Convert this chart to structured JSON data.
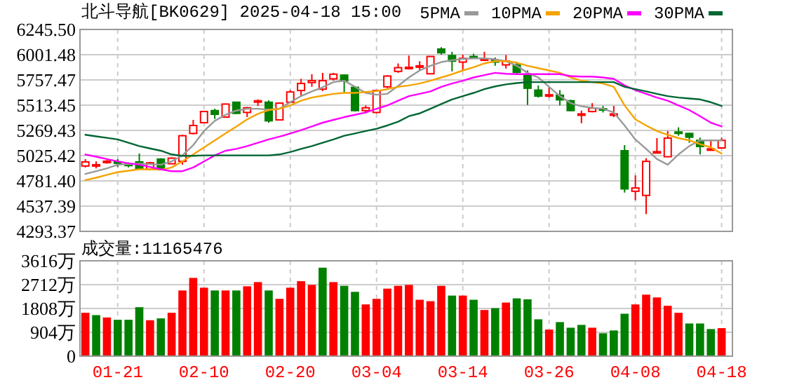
{
  "chart_data": [
    {
      "type": "candlestick",
      "title": "北斗导航[BK0629] 2025-04-18 15:00",
      "categories": [
        null,
        null,
        null,
        null,
        null,
        null,
        null,
        null,
        null,
        null,
        null,
        null,
        null,
        null,
        null,
        null,
        null,
        null,
        null,
        null,
        null,
        null,
        null,
        null,
        null,
        null,
        null,
        null,
        null,
        null,
        null,
        null,
        null,
        null,
        null,
        null,
        null,
        null,
        null,
        null,
        null,
        null,
        null,
        null,
        null,
        null,
        null,
        null,
        null,
        null,
        null,
        null,
        null,
        null,
        null,
        null,
        null,
        null,
        null,
        null
      ],
      "ohlc": [
        [
          4925,
          4992,
          4911,
          4965
        ],
        [
          4933,
          4970,
          4902,
          4938
        ],
        [
          4970,
          4983,
          4947,
          4972
        ],
        [
          4965,
          4992,
          4916,
          4960
        ],
        [
          4947,
          4961,
          4911,
          4929
        ],
        [
          4965,
          5046,
          4898,
          4902
        ],
        [
          4893,
          4965,
          4889,
          4956
        ],
        [
          4992,
          5001,
          4898,
          4902
        ],
        [
          4947,
          5010,
          4943,
          5001
        ],
        [
          4970,
          5227,
          4938,
          5218
        ],
        [
          5240,
          5371,
          5231,
          5317
        ],
        [
          5344,
          5456,
          5340,
          5452
        ],
        [
          5461,
          5479,
          5380,
          5425
        ],
        [
          5398,
          5529,
          5394,
          5524
        ],
        [
          5542,
          5546,
          5430,
          5434
        ],
        [
          5443,
          5497,
          5398,
          5488
        ],
        [
          5547,
          5569,
          5506,
          5556
        ],
        [
          5542,
          5560,
          5344,
          5362
        ],
        [
          5371,
          5538,
          5366,
          5533
        ],
        [
          5542,
          5659,
          5533,
          5641
        ],
        [
          5655,
          5768,
          5601,
          5723
        ],
        [
          5732,
          5813,
          5691,
          5750
        ],
        [
          5668,
          5826,
          5650,
          5750
        ],
        [
          5768,
          5826,
          5750,
          5813
        ],
        [
          5804,
          5813,
          5632,
          5750
        ],
        [
          5686,
          5695,
          5452,
          5461
        ],
        [
          5461,
          5511,
          5434,
          5488
        ],
        [
          5443,
          5659,
          5434,
          5655
        ],
        [
          5691,
          5804,
          5677,
          5795
        ],
        [
          5840,
          5917,
          5826,
          5876
        ],
        [
          5876,
          5993,
          5858,
          5880
        ],
        [
          5890,
          5939,
          5849,
          5894
        ],
        [
          5817,
          5988,
          5813,
          5984
        ],
        [
          6056,
          6074,
          6002,
          6020
        ],
        [
          5993,
          6029,
          5840,
          5939
        ],
        [
          5930,
          6002,
          5849,
          5966
        ],
        [
          5984,
          6011,
          5966,
          5975
        ],
        [
          5957,
          6029,
          5939,
          5961
        ],
        [
          5948,
          5975,
          5894,
          5930
        ],
        [
          5903,
          5998,
          5867,
          5939
        ],
        [
          5903,
          5930,
          5813,
          5831
        ],
        [
          5813,
          5849,
          5515,
          5677
        ],
        [
          5659,
          5704,
          5587,
          5601
        ],
        [
          5610,
          5691,
          5587,
          5614
        ],
        [
          5610,
          5659,
          5511,
          5565
        ],
        [
          5556,
          5565,
          5456,
          5461
        ],
        [
          5425,
          5461,
          5339,
          5429
        ],
        [
          5452,
          5533,
          5443,
          5484
        ],
        [
          5479,
          5506,
          5443,
          5475
        ],
        [
          5425,
          5506,
          5398,
          5429
        ],
        [
          5073,
          5127,
          4668,
          4704
        ],
        [
          4681,
          4834,
          4595,
          4713
        ],
        [
          4641,
          5001,
          4460,
          4970
        ],
        [
          5060,
          5195,
          5055,
          5064
        ],
        [
          5015,
          5263,
          5010,
          5195
        ],
        [
          5254,
          5299,
          5218,
          5250
        ],
        [
          5240,
          5245,
          5150,
          5204
        ],
        [
          5173,
          5200,
          5037,
          5114
        ],
        [
          5087,
          5182,
          5073,
          5091
        ],
        [
          5100,
          5200,
          5091,
          5173
        ]
      ],
      "ylim": [
        4293.37,
        6245.5
      ],
      "yticks": [
        {
          "value": 4293.37,
          "label": "4293.37"
        },
        {
          "value": 4537.39,
          "label": "4537.39"
        },
        {
          "value": 4781.4,
          "label": "4781.40"
        },
        {
          "value": 5025.42,
          "label": "5025.42"
        },
        {
          "value": 5269.43,
          "label": "5269.43"
        },
        {
          "value": 5513.45,
          "label": "5513.45"
        },
        {
          "value": 5757.47,
          "label": "5757.47"
        },
        {
          "value": 6001.48,
          "label": "6001.48"
        },
        {
          "value": 6245.5,
          "label": "6245.50"
        }
      ],
      "grid": true,
      "legend": "top right",
      "tick_labels": "y",
      "series": [
        {
          "name": "5PMA",
          "type": "line",
          "color": "#999999",
          "values": [
            4848,
            4875,
            4902,
            4938,
            4943,
            4947,
            4943,
            4938,
            4970,
            5028,
            5127,
            5263,
            5362,
            5420,
            5461,
            5479,
            5479,
            5470,
            5479,
            5542,
            5601,
            5646,
            5686,
            5736,
            5750,
            5691,
            5632,
            5614,
            5623,
            5700,
            5781,
            5849,
            5894,
            5930,
            5948,
            5961,
            5966,
            5966,
            5957,
            5939,
            5894,
            5826,
            5781,
            5691,
            5601,
            5533,
            5502,
            5488,
            5479,
            5443,
            5317,
            5182,
            5091,
            4992,
            4938,
            5037,
            5118,
            5173,
            5173,
            5173
          ]
        },
        {
          "name": "10PMA",
          "type": "line",
          "color": "#f5a300",
          "values": [
            4789,
            4812,
            4840,
            4866,
            4880,
            4893,
            4893,
            4889,
            4911,
            4970,
            5037,
            5105,
            5173,
            5240,
            5307,
            5376,
            5430,
            5466,
            5479,
            5511,
            5556,
            5587,
            5605,
            5623,
            5632,
            5632,
            5641,
            5650,
            5668,
            5691,
            5704,
            5723,
            5750,
            5781,
            5813,
            5849,
            5880,
            5917,
            5939,
            5939,
            5925,
            5894,
            5871,
            5849,
            5826,
            5781,
            5750,
            5736,
            5723,
            5691,
            5511,
            5376,
            5317,
            5263,
            5227,
            5195,
            5173,
            5136,
            5105,
            5046
          ]
        },
        {
          "name": "20PMA",
          "type": "line",
          "color": "#ff00ff",
          "values": [
            5037,
            5015,
            4992,
            4970,
            4952,
            4938,
            4916,
            4893,
            4875,
            4875,
            4911,
            4970,
            5028,
            5073,
            5091,
            5118,
            5150,
            5182,
            5209,
            5240,
            5272,
            5307,
            5344,
            5371,
            5398,
            5420,
            5443,
            5479,
            5511,
            5556,
            5601,
            5623,
            5646,
            5691,
            5723,
            5750,
            5781,
            5804,
            5826,
            5817,
            5813,
            5813,
            5813,
            5813,
            5813,
            5795,
            5790,
            5790,
            5781,
            5768,
            5704,
            5659,
            5623,
            5587,
            5556,
            5511,
            5466,
            5407,
            5344,
            5307
          ]
        },
        {
          "name": "30PMA",
          "type": "line",
          "color": "#006633",
          "values": [
            5227,
            5212,
            5197,
            5182,
            5150,
            5118,
            5095,
            5073,
            5037,
            5024,
            5024,
            5028,
            5028,
            5028,
            5028,
            5028,
            5028,
            5028,
            5037,
            5060,
            5091,
            5118,
            5150,
            5182,
            5218,
            5240,
            5263,
            5285,
            5317,
            5353,
            5407,
            5434,
            5479,
            5524,
            5569,
            5601,
            5632,
            5668,
            5695,
            5714,
            5727,
            5736,
            5736,
            5736,
            5736,
            5736,
            5736,
            5736,
            5736,
            5736,
            5691,
            5668,
            5646,
            5623,
            5601,
            5587,
            5578,
            5569,
            5542,
            5506
          ]
        }
      ]
    },
    {
      "type": "bar",
      "title": "成交量:11165476",
      "categories": [
        null,
        null,
        null,
        "01-21",
        null,
        null,
        null,
        null,
        null,
        null,
        null,
        "02-10",
        null,
        null,
        null,
        null,
        null,
        null,
        null,
        "02-20",
        null,
        null,
        null,
        null,
        null,
        null,
        null,
        "03-04",
        null,
        null,
        null,
        null,
        null,
        null,
        null,
        "03-14",
        null,
        null,
        null,
        null,
        null,
        null,
        null,
        "03-26",
        null,
        null,
        null,
        null,
        null,
        null,
        null,
        "04-08",
        null,
        null,
        null,
        null,
        null,
        null,
        null,
        "04-18"
      ],
      "values": [
        1623,
        1535,
        1446,
        1358,
        1358,
        1835,
        1341,
        1411,
        1623,
        2470,
        2946,
        2575,
        2470,
        2470,
        2470,
        2628,
        2787,
        2470,
        2152,
        2575,
        2822,
        2681,
        3334,
        2787,
        2646,
        2417,
        1940,
        2152,
        2540,
        2646,
        2681,
        2117,
        2064,
        2646,
        2276,
        2276,
        2117,
        1729,
        1799,
        2011,
        2170,
        2134,
        1376,
        988,
        1270,
        1058,
        1164,
        1058,
        847,
        953,
        1588,
        1940,
        2311,
        2205,
        1888,
        1623,
        1217,
        1217,
        1006,
        1041
      ],
      "colors": [
        "#ff0000",
        "#008000",
        "#ff0000",
        "#008000",
        "#008000",
        "#008000",
        "#ff0000",
        "#008000",
        "#ff0000",
        "#ff0000",
        "#ff0000",
        "#ff0000",
        "#008000",
        "#ff0000",
        "#008000",
        "#ff0000",
        "#ff0000",
        "#008000",
        "#ff0000",
        "#ff0000",
        "#ff0000",
        "#ff0000",
        "#008000",
        "#ff0000",
        "#008000",
        "#008000",
        "#ff0000",
        "#ff0000",
        "#ff0000",
        "#ff0000",
        "#ff0000",
        "#ff0000",
        "#ff0000",
        "#ff0000",
        "#008000",
        "#ff0000",
        "#008000",
        "#ff0000",
        "#008000",
        "#ff0000",
        "#008000",
        "#008000",
        "#008000",
        "#ff0000",
        "#008000",
        "#008000",
        "#008000",
        "#ff0000",
        "#008000",
        "#008000",
        "#008000",
        "#ff0000",
        "#ff0000",
        "#ff0000",
        "#ff0000",
        "#ff0000",
        "#008000",
        "#008000",
        "#008000",
        "#ff0000"
      ],
      "ylim": [
        0,
        3616
      ],
      "yticks": [
        0,
        {
          "value": 904,
          "label": "904万"
        },
        {
          "value": 1808,
          "label": "1808万"
        },
        {
          "value": 2712,
          "label": "2712万"
        },
        {
          "value": 3616,
          "label": "3616万"
        }
      ],
      "grid": true
    }
  ]
}
